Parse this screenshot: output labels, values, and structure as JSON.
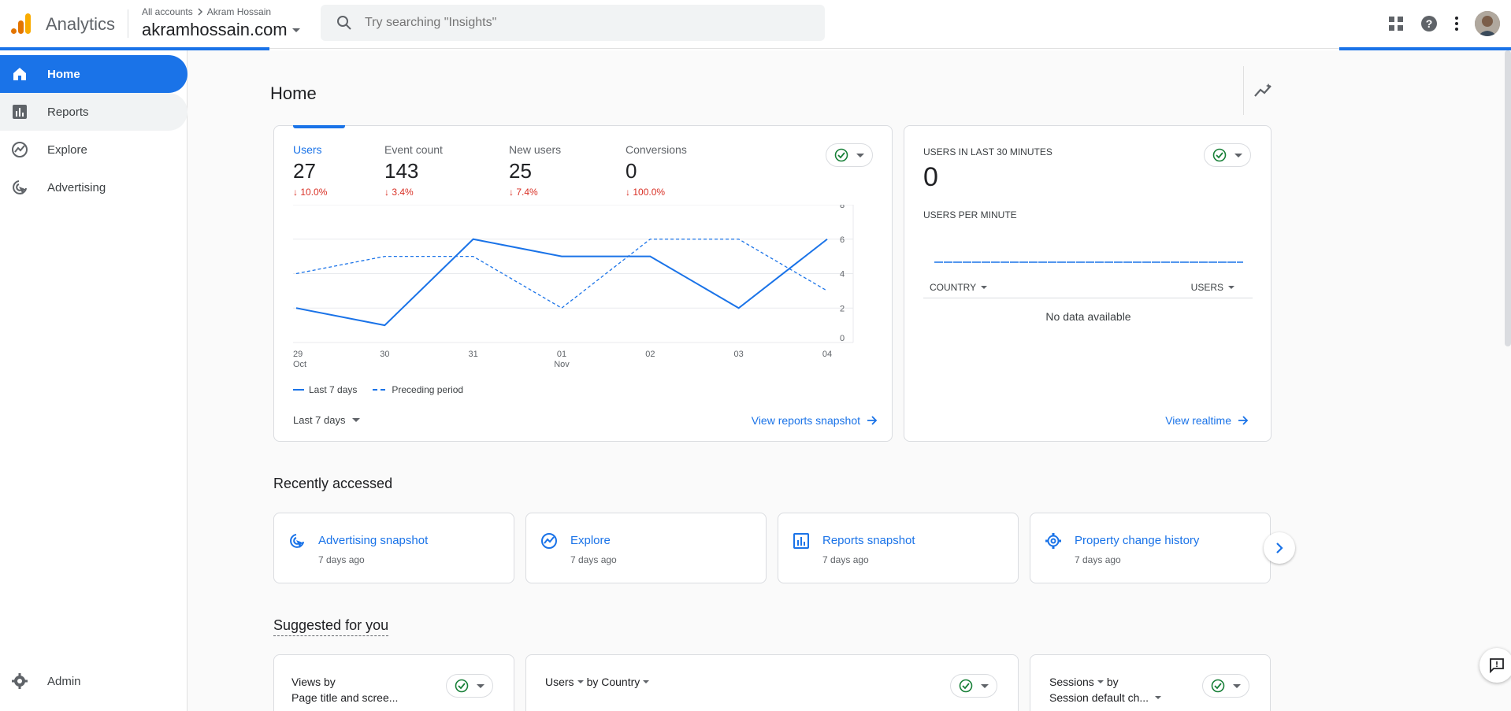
{
  "app": {
    "name": "Analytics"
  },
  "header": {
    "breadcrumb_root": "All accounts",
    "breadcrumb_account": "Akram Hossain",
    "property": "akramhossain.com",
    "search_placeholder": "Try searching \"Insights\""
  },
  "sidebar": {
    "items": [
      {
        "label": "Home",
        "icon": "home-icon"
      },
      {
        "label": "Reports",
        "icon": "bar-chart-icon"
      },
      {
        "label": "Explore",
        "icon": "explore-icon"
      },
      {
        "label": "Advertising",
        "icon": "advertising-icon"
      }
    ],
    "admin": "Admin"
  },
  "page": {
    "title": "Home"
  },
  "overview": {
    "metrics": [
      {
        "label": "Users",
        "value": "27",
        "change": "10.0%"
      },
      {
        "label": "Event count",
        "value": "143",
        "change": "3.4%"
      },
      {
        "label": "New users",
        "value": "25",
        "change": "7.4%"
      },
      {
        "label": "Conversions",
        "value": "0",
        "change": "100.0%"
      }
    ],
    "legend_current": "Last 7 days",
    "legend_previous": "Preceding period",
    "date_range": "Last 7 days",
    "link": "View reports snapshot"
  },
  "chart_data": {
    "type": "line",
    "x": [
      "29 Oct",
      "30",
      "31",
      "01 Nov",
      "02",
      "03",
      "04"
    ],
    "x_tick_labels": [
      [
        "29",
        "Oct"
      ],
      [
        "30"
      ],
      [
        "31"
      ],
      [
        "01",
        "Nov"
      ],
      [
        "02"
      ],
      [
        "03"
      ],
      [
        "04"
      ]
    ],
    "y_ticks": [
      "8",
      "6",
      "4",
      "2",
      "0"
    ],
    "ylim": [
      0,
      8
    ],
    "series": [
      {
        "name": "Last 7 days",
        "values": [
          2,
          1,
          6,
          5,
          5,
          2,
          6
        ],
        "style": "solid"
      },
      {
        "name": "Preceding period",
        "values": [
          4,
          5,
          5,
          2,
          6,
          6,
          3
        ],
        "style": "dashed"
      }
    ],
    "color": "#1a73e8",
    "grid": true,
    "legend_position": "bottom-left"
  },
  "realtime": {
    "title": "USERS IN LAST 30 MINUTES",
    "value": "0",
    "subtitle": "USERS PER MINUTE",
    "col_country": "COUNTRY",
    "col_users": "USERS",
    "empty": "No data available",
    "link": "View realtime"
  },
  "recent": {
    "title": "Recently accessed",
    "items": [
      {
        "label": "Advertising snapshot",
        "time": "7 days ago",
        "icon": "advertising-icon"
      },
      {
        "label": "Explore",
        "time": "7 days ago",
        "icon": "explore-icon"
      },
      {
        "label": "Reports snapshot",
        "time": "7 days ago",
        "icon": "bar-chart-icon"
      },
      {
        "label": "Property change history",
        "time": "7 days ago",
        "icon": "gear-icon"
      }
    ]
  },
  "suggested": {
    "title": "Suggested for you",
    "cards": [
      {
        "line1": "Views by",
        "line2": "Page title and scree..."
      },
      {
        "line1": "Users",
        "line1b": "by Country"
      },
      {
        "line1": "Sessions",
        "line1b": "by",
        "line2": "Session default ch..."
      }
    ]
  },
  "colors": {
    "accent": "#1a73e8",
    "negative": "#d93025",
    "check": "#188038"
  }
}
